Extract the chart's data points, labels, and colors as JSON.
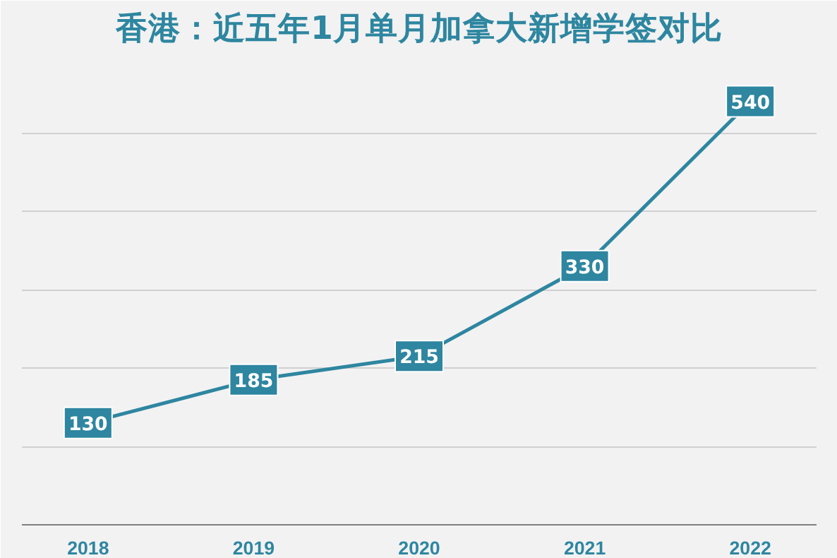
{
  "chart_data": {
    "type": "line",
    "title": "香港：近五年1月单月加拿大新增学签对比",
    "categories": [
      "2018",
      "2019",
      "2020",
      "2021",
      "2022"
    ],
    "series": [
      {
        "color": "#2e86a0",
        "values": [
          130,
          185,
          215,
          330,
          540
        ]
      }
    ],
    "ylim": [
      0,
      600
    ],
    "yticks": [
      {
        "value": 100,
        "label": null
      },
      {
        "value": 200,
        "label": null
      },
      {
        "value": 300,
        "label": null
      },
      {
        "value": 400,
        "label": null
      },
      {
        "value": 500,
        "label": null
      },
      {
        "value": 600,
        "label": null
      }
    ],
    "grid": "y",
    "tick_labels": "x",
    "data_labels": true,
    "marker": "square",
    "line_style": "solid"
  }
}
